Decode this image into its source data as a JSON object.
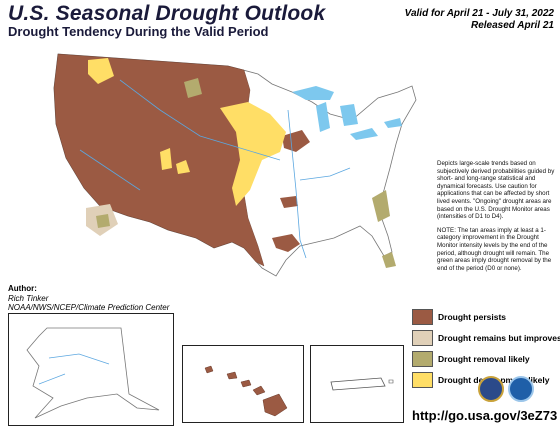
{
  "header": {
    "title": "U.S. Seasonal Drought Outlook",
    "subtitle": "Drought Tendency During the Valid Period",
    "valid": "Valid for April 21 - July 31, 2022",
    "released": "Released April 21"
  },
  "description": {
    "para1": "Depicts large-scale trends based on subjectively derived probabilities guided by short- and long-range statistical and dynamical forecasts. Use caution for applications that can be affected by short lived events. \"Ongoing\" drought areas are based on the U.S. Drought Monitor areas (intensities of D1 to D4).",
    "para2": "NOTE: The tan areas imply at least a 1-category improvement in the Drought Monitor intensity levels by the end of the period, although drought will remain. The green areas imply drought removal by the end of the period (D0 or none)."
  },
  "author": {
    "heading": "Author:",
    "name": "Rich Tinker",
    "org": "NOAA/NWS/NCEP/Climate Prediction Center"
  },
  "legend": [
    {
      "label": "Drought persists",
      "color": "#9b5a43"
    },
    {
      "label": "Drought remains but improves",
      "color": "#e0d0b8"
    },
    {
      "label": "Drought removal likely",
      "color": "#b3ab6e"
    },
    {
      "label": "Drought development likely",
      "color": "#ffde66"
    }
  ],
  "colors": {
    "persists": "#9b5a43",
    "improves": "#e0d0b8",
    "removal": "#b3ab6e",
    "development": "#ffde66",
    "water": "#7dc8ee"
  },
  "url": "http://go.usa.gov/3eZ73"
}
